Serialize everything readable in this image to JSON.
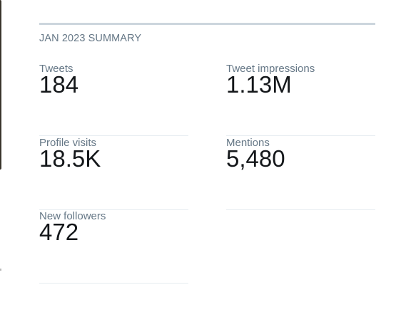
{
  "header": {
    "title": "JAN 2023 SUMMARY"
  },
  "stats": [
    {
      "label": "Tweets",
      "value": "184"
    },
    {
      "label": "Tweet impressions",
      "value": "1.13M"
    },
    {
      "label": "Profile visits",
      "value": "18.5K"
    },
    {
      "label": "Mentions",
      "value": "5,480"
    },
    {
      "label": "New followers",
      "value": "472"
    }
  ]
}
